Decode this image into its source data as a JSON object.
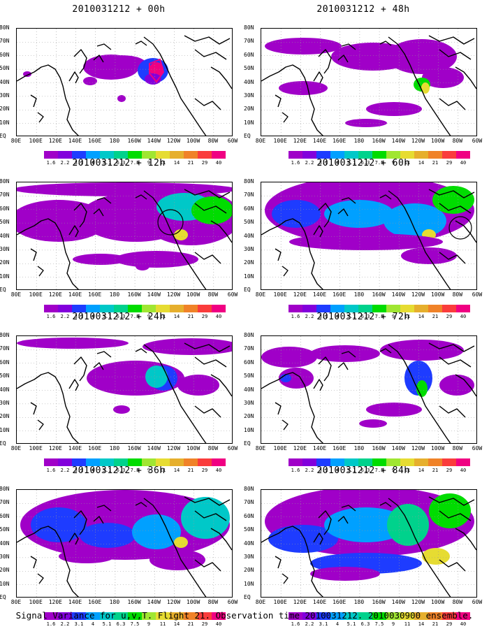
{
  "panels": [
    {
      "title": "2010031212 + 00h",
      "field": 0
    },
    {
      "title": "2010031212 + 48h",
      "field": 4
    },
    {
      "title": "2010031212 + 12h",
      "field": 1
    },
    {
      "title": "2010031212 + 60h",
      "field": 5
    },
    {
      "title": "2010031212 + 24h",
      "field": 2
    },
    {
      "title": "2010031212 + 72h",
      "field": 6
    },
    {
      "title": "2010031212 + 36h",
      "field": 3
    },
    {
      "title": "2010031212 + 84h",
      "field": 7
    }
  ],
  "lat_labels": [
    "80N",
    "70N",
    "60N",
    "50N",
    "40N",
    "30N",
    "20N",
    "10N",
    "EQ"
  ],
  "lon_labels": [
    "80E",
    "100E",
    "120E",
    "140E",
    "160E",
    "180",
    "160W",
    "140W",
    "120W",
    "100W",
    "80W",
    "60W"
  ],
  "colorbar": {
    "colors": [
      "#a000c8",
      "#8200dc",
      "#1e3cff",
      "#00a0ff",
      "#00c8c8",
      "#00d28c",
      "#00dc00",
      "#a0e632",
      "#e6dc32",
      "#e6af2d",
      "#f08228",
      "#fa3c3c",
      "#f00082"
    ],
    "labels": [
      "1.6",
      "2.2",
      "3.1",
      "4",
      "5.1",
      "6.3",
      "7.5",
      "9",
      "11",
      "14",
      "21",
      "29",
      "40"
    ]
  },
  "footer": "Signal Variance for u,v,T. Flight 21. Observation time 2010031212. 2010030900 ensemble."
}
